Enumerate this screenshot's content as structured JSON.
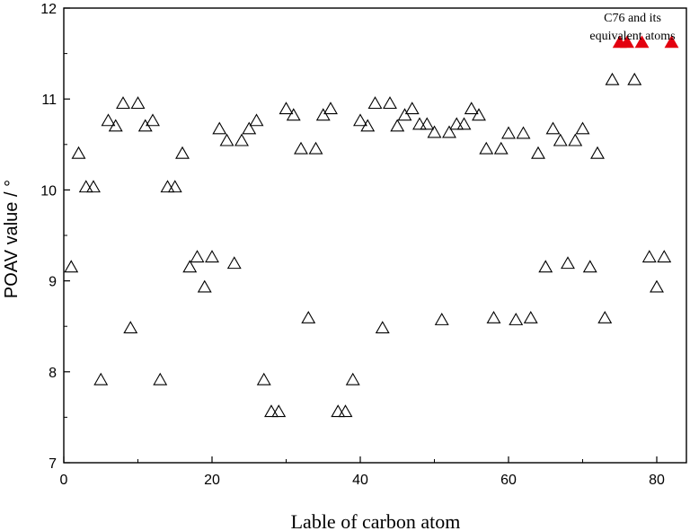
{
  "chart_data": {
    "type": "scatter",
    "title": "",
    "xlabel": "Lable of carbon atom",
    "ylabel": "POAV value / °",
    "xlim": [
      0,
      84
    ],
    "ylim": [
      7,
      12
    ],
    "xticks": [
      0,
      20,
      40,
      60,
      80
    ],
    "yticks": [
      7,
      8,
      9,
      10,
      11,
      12
    ],
    "xtick_labels": [
      "0",
      "20",
      "40",
      "60",
      "80"
    ],
    "ytick_labels": [
      "7",
      "8",
      "9",
      "10",
      "11",
      "12"
    ],
    "grid": false,
    "series": [
      {
        "marker": "open-triangle",
        "color": "#000000",
        "points": [
          [
            1,
            9.15
          ],
          [
            2,
            10.4
          ],
          [
            3,
            10.03
          ],
          [
            4,
            10.03
          ],
          [
            5,
            7.91
          ],
          [
            6,
            10.76
          ],
          [
            7,
            10.7
          ],
          [
            8,
            10.95
          ],
          [
            9,
            8.48
          ],
          [
            10,
            10.95
          ],
          [
            11,
            10.7
          ],
          [
            12,
            10.76
          ],
          [
            13,
            7.91
          ],
          [
            14,
            10.03
          ],
          [
            15,
            10.03
          ],
          [
            16,
            10.4
          ],
          [
            17,
            9.15
          ],
          [
            18,
            9.26
          ],
          [
            19,
            8.93
          ],
          [
            20,
            9.26
          ],
          [
            21,
            10.67
          ],
          [
            22,
            10.54
          ],
          [
            23,
            9.19
          ],
          [
            24,
            10.54
          ],
          [
            25,
            10.67
          ],
          [
            26,
            10.76
          ],
          [
            27,
            7.91
          ],
          [
            28,
            7.56
          ],
          [
            29,
            7.56
          ],
          [
            30,
            10.89
          ],
          [
            31,
            10.82
          ],
          [
            32,
            10.45
          ],
          [
            33,
            8.59
          ],
          [
            34,
            10.45
          ],
          [
            35,
            10.82
          ],
          [
            36,
            10.89
          ],
          [
            37,
            7.56
          ],
          [
            38,
            7.56
          ],
          [
            39,
            7.91
          ],
          [
            40,
            10.76
          ],
          [
            41,
            10.7
          ],
          [
            42,
            10.95
          ],
          [
            43,
            8.48
          ],
          [
            44,
            10.95
          ],
          [
            45,
            10.7
          ],
          [
            46,
            10.82
          ],
          [
            47,
            10.89
          ],
          [
            48,
            10.72
          ],
          [
            49,
            10.72
          ],
          [
            50,
            10.63
          ],
          [
            51,
            8.57
          ],
          [
            52,
            10.63
          ],
          [
            53,
            10.72
          ],
          [
            54,
            10.72
          ],
          [
            55,
            10.89
          ],
          [
            56,
            10.82
          ],
          [
            57,
            10.45
          ],
          [
            58,
            8.59
          ],
          [
            59,
            10.45
          ],
          [
            60,
            10.62
          ],
          [
            61,
            8.57
          ],
          [
            62,
            10.62
          ],
          [
            63,
            8.59
          ],
          [
            64,
            10.4
          ],
          [
            65,
            9.15
          ],
          [
            66,
            10.67
          ],
          [
            67,
            10.54
          ],
          [
            68,
            9.19
          ],
          [
            69,
            10.54
          ],
          [
            70,
            10.67
          ],
          [
            71,
            9.15
          ],
          [
            72,
            10.4
          ],
          [
            73,
            8.59
          ],
          [
            74,
            11.21
          ],
          [
            77,
            11.21
          ],
          [
            79,
            9.26
          ],
          [
            80,
            8.93
          ],
          [
            81,
            9.26
          ]
        ]
      },
      {
        "marker": "filled-triangle",
        "color": "#e3000f",
        "points": [
          [
            75,
            11.62
          ],
          [
            76,
            11.62
          ],
          [
            78,
            11.62
          ],
          [
            82,
            11.62
          ]
        ]
      }
    ],
    "annotations": [
      {
        "text_lines": [
          "C76 and its",
          "equivalent atoms"
        ]
      }
    ]
  }
}
